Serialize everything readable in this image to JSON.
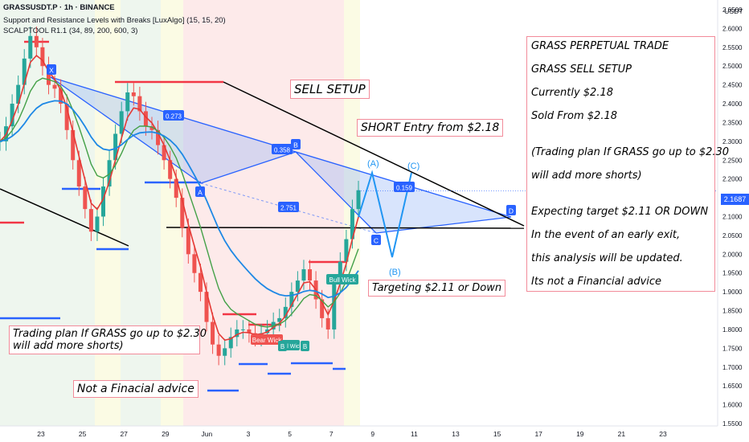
{
  "header": {
    "symbol_line": "GRASSUSDT.P · 1h · BINANCE",
    "indicator_1": "Support and Resistance Levels with Breaks [LuxAlgo] (15, 15, 20)",
    "indicator_2": "SCALPTOOL R1.1 (34, 89, 200, 600, 3)"
  },
  "axis": {
    "currency": "USDT",
    "current_price": "2.1687"
  },
  "annotations": {
    "sell_setup": "SELL SETUP",
    "short_entry": "SHORT Entry from $2.18",
    "targeting": "Targeting $2.11 or Down",
    "trading_plan_line1": "Trading plan If GRASS go up to $2.30",
    "trading_plan_line2": "will add more shorts)",
    "not_advice": "Not a Finacial advice"
  },
  "panel": {
    "lines": [
      "GRASS PERPETUAL TRADE",
      "GRASS SELL SETUP",
      "Currently $2.18",
      "Sold From $2.18",
      "(Trading plan If GRASS go up to $2.30",
      "will add more shorts)",
      "Expecting target $2.11 OR DOWN",
      "In the event of an early exit,",
      "this analysis will be updated.",
      "Its not a Financial advice"
    ]
  },
  "pattern": {
    "points": [
      "X",
      "A",
      "B",
      "C",
      "D"
    ],
    "ratios": [
      "0.273",
      "0.358",
      "2.751",
      "0.159"
    ],
    "waves": [
      "(A)",
      "(B)",
      "(C)"
    ]
  },
  "wick_labels": [
    "Bull Wick",
    "Bear Wick",
    "Bull Wick"
  ],
  "wick_small": [
    "B",
    "B"
  ],
  "colors": {
    "up": "#26a69a",
    "down": "#ef5350",
    "pattern": "#2962ff",
    "resistance": "#f23645",
    "support": "#2962ff",
    "annotation_border": "#f28b9a",
    "wave": "#2196f3"
  },
  "chart_data": {
    "type": "line",
    "symbol": "GRASSUSDT.P",
    "timeframe": "1h",
    "exchange": "BINANCE",
    "x_ticks": [
      "23",
      "25",
      "27",
      "29",
      "Jun",
      "3",
      "5",
      "7",
      "9",
      "11",
      "13",
      "15",
      "17",
      "19",
      "21",
      "23"
    ],
    "y_ticks": [
      "2.6500",
      "2.6000",
      "2.5500",
      "2.5000",
      "2.4500",
      "2.4000",
      "2.3500",
      "2.3000",
      "2.2500",
      "2.2000",
      "2.1500",
      "2.1000",
      "2.0500",
      "2.0000",
      "1.9500",
      "1.9000",
      "1.8500",
      "1.8000",
      "1.7500",
      "1.7000",
      "1.6500",
      "1.6000",
      "1.5500"
    ],
    "ylim": [
      1.55,
      2.65
    ],
    "grid": false,
    "series": [
      {
        "values": [
          2.3,
          2.34,
          2.4,
          2.45,
          2.52,
          2.58,
          2.55,
          2.5,
          2.45,
          2.44,
          2.4,
          2.33,
          2.25,
          2.18,
          2.12,
          2.06,
          2.1,
          2.18,
          2.25,
          2.32,
          2.38,
          2.43,
          2.42,
          2.38,
          2.34,
          2.33,
          2.29,
          2.25,
          2.2,
          2.15,
          2.07,
          2.0,
          1.95,
          1.9,
          1.82,
          1.76,
          1.73,
          1.75,
          1.78,
          1.8,
          1.8,
          1.79,
          1.78,
          1.79,
          1.8,
          1.82,
          1.83,
          1.86,
          1.9,
          1.93,
          1.96,
          1.93,
          1.88,
          1.83,
          1.8,
          1.92,
          1.98,
          2.04,
          2.12,
          2.17
        ]
      }
    ]
  }
}
